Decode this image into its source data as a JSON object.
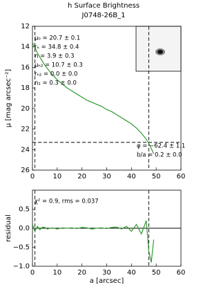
{
  "chart_data": [
    {
      "type": "line",
      "title": "h Surface Brightness",
      "subtitle": "J0748-26B_1",
      "ylabel": "μ [mag arcsec⁻²]",
      "x": [
        0,
        1,
        2,
        3,
        4,
        5,
        6,
        8,
        10,
        12,
        14,
        16,
        18,
        20,
        22,
        24,
        26,
        28,
        30,
        32,
        34,
        36,
        38,
        40,
        42,
        44,
        46,
        47,
        48,
        49
      ],
      "series": [
        {
          "color": "#2e9a2e",
          "values": [
            13.6,
            14.1,
            14.6,
            15.0,
            15.4,
            15.8,
            16.1,
            16.7,
            17.2,
            17.6,
            18.0,
            18.3,
            18.6,
            18.9,
            19.2,
            19.4,
            19.6,
            19.8,
            20.1,
            20.3,
            20.6,
            20.9,
            21.2,
            21.5,
            21.9,
            22.4,
            23.0,
            23.4,
            23.9,
            24.4
          ]
        }
      ],
      "xlim": [
        0,
        60
      ],
      "xticks": [
        0,
        10,
        20,
        30,
        40,
        50,
        60
      ],
      "ylim": [
        26,
        12
      ],
      "yticks": [
        12,
        14,
        16,
        18,
        20,
        22,
        24,
        26
      ],
      "vlines": [
        1,
        47
      ],
      "hline": 23.3,
      "annotations": [
        "μ₀ = 20.7 ± 0.1",
        "rₕ = 34.8 ± 0.4",
        "n = 3.9 ± 0.3",
        "μₕ₂ = 10.7 ± 0.3",
        "rₕ₂ = 0.0 ± 0.0",
        "n₂ = 0.3 ± 0.0",
        "φ = −62.4 ± 1.1",
        "b/a = 0.2 ± 0.0"
      ]
    },
    {
      "type": "line",
      "ylabel": "residual",
      "xlabel": "a [arcsec]",
      "x": [
        0,
        1,
        2,
        3,
        4,
        5,
        6,
        8,
        10,
        12,
        14,
        16,
        18,
        20,
        22,
        24,
        26,
        28,
        30,
        32,
        34,
        36,
        38,
        40,
        42,
        44,
        46,
        47,
        48,
        49
      ],
      "series": [
        {
          "color": "#2e9a2e",
          "values": [
            0.1,
            -0.08,
            0.05,
            -0.04,
            0.03,
            0.02,
            -0.02,
            0.01,
            -0.02,
            0.01,
            0,
            0.01,
            -0.01,
            0.02,
            0.01,
            -0.02,
            0,
            0.01,
            -0.01,
            0.02,
            0.03,
            -0.02,
            0.05,
            -0.08,
            0.1,
            -0.15,
            0.2,
            -0.6,
            -0.9,
            -0.3
          ]
        }
      ],
      "xlim": [
        0,
        60
      ],
      "xticks": [
        0,
        10,
        20,
        30,
        40,
        50,
        60
      ],
      "ylim": [
        -1,
        1
      ],
      "yticks": [
        {
          "value": -1,
          "label": "−1.0"
        },
        {
          "value": -0.5,
          "label": "−0.5"
        },
        {
          "value": 0,
          "label": "0.0"
        },
        0.5
      ],
      "vlines": [
        1,
        47
      ],
      "hline": 0,
      "annotations": [
        "χ² = 0.9, rms = 0.037"
      ]
    }
  ]
}
